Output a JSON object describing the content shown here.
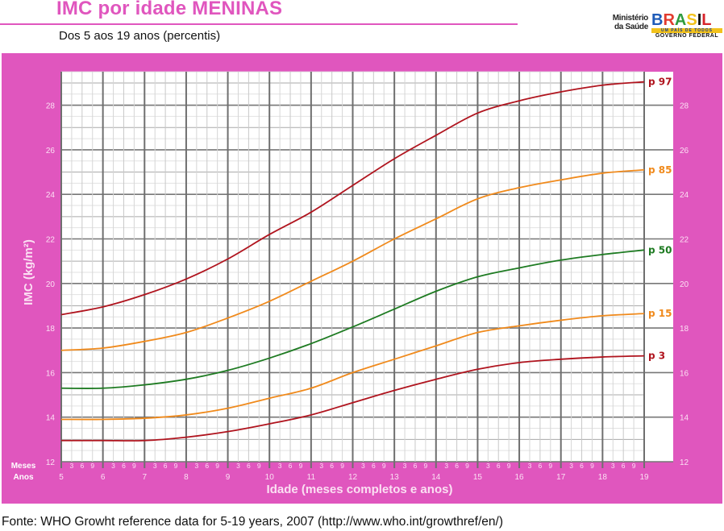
{
  "header": {
    "title": "IMC por idade MENINAS",
    "subtitle": "Dos 5 aos 19 anos (percentis)",
    "logo": {
      "ministry_line1": "Ministério",
      "ministry_line2": "da Saúde",
      "brand": [
        "B",
        "R",
        "A",
        "S",
        "I",
        "L"
      ],
      "brand_colors": [
        "#1E5BB8",
        "#E23B2E",
        "#2E9B3E",
        "#F2C21B",
        "#111111",
        "#D8232A"
      ],
      "tagline": "UM PAÍS DE TODOS",
      "government": "GOVERNO FEDERAL"
    }
  },
  "colors": {
    "frame": "#E056BE",
    "title": "#E056BE",
    "p97": "#B0141E",
    "p85": "#F08A1C",
    "p50": "#1E7B22",
    "p15": "#F08A1C",
    "p3": "#B0141E"
  },
  "axis": {
    "months_label": "Meses",
    "years_label": "Anos",
    "month_ticks": [
      "3",
      "6",
      "9"
    ]
  },
  "chart_data": {
    "type": "line",
    "title": "IMC por idade MENINAS",
    "subtitle": "Dos 5 aos 19 anos (percentis)",
    "xlabel": "Idade (meses completos e anos)",
    "ylabel": "IMC (kg/m²)",
    "xlim": [
      5,
      19
    ],
    "ylim": [
      12,
      29.5
    ],
    "x_ticks": [
      5,
      6,
      7,
      8,
      9,
      10,
      11,
      12,
      13,
      14,
      15,
      16,
      17,
      18,
      19
    ],
    "y_ticks": [
      12,
      14,
      16,
      18,
      20,
      22,
      24,
      26,
      28
    ],
    "minor_x_ticks_months": [
      3,
      6,
      9
    ],
    "grid": true,
    "x": [
      5,
      6,
      7,
      8,
      9,
      10,
      11,
      12,
      13,
      14,
      15,
      16,
      17,
      18,
      19
    ],
    "series": [
      {
        "name": "p 97",
        "color": "#B0141E",
        "values": [
          18.6,
          18.95,
          19.5,
          20.2,
          21.1,
          22.2,
          23.2,
          24.4,
          25.6,
          26.65,
          27.65,
          28.2,
          28.6,
          28.9,
          29.05
        ]
      },
      {
        "name": "p 85",
        "color": "#F08A1C",
        "values": [
          17.0,
          17.1,
          17.4,
          17.8,
          18.45,
          19.2,
          20.1,
          21.0,
          22.0,
          22.9,
          23.8,
          24.3,
          24.65,
          24.95,
          25.1
        ]
      },
      {
        "name": "p 50",
        "color": "#1E7B22",
        "values": [
          15.3,
          15.3,
          15.45,
          15.7,
          16.1,
          16.65,
          17.3,
          18.05,
          18.85,
          19.65,
          20.3,
          20.7,
          21.05,
          21.3,
          21.5
        ]
      },
      {
        "name": "p 15",
        "color": "#F08A1C",
        "values": [
          13.9,
          13.9,
          13.95,
          14.1,
          14.4,
          14.85,
          15.3,
          16.0,
          16.6,
          17.2,
          17.8,
          18.1,
          18.35,
          18.55,
          18.65
        ]
      },
      {
        "name": "p 3",
        "color": "#B0141E",
        "values": [
          12.95,
          12.95,
          12.95,
          13.1,
          13.35,
          13.7,
          14.1,
          14.65,
          15.2,
          15.7,
          16.15,
          16.45,
          16.6,
          16.7,
          16.75
        ]
      }
    ],
    "legend_position": "right-end labels"
  },
  "footer": {
    "source": "Fonte: WHO Growht reference data for 5-19 years, 2007 (http://www.who.int/growthref/en/)"
  }
}
